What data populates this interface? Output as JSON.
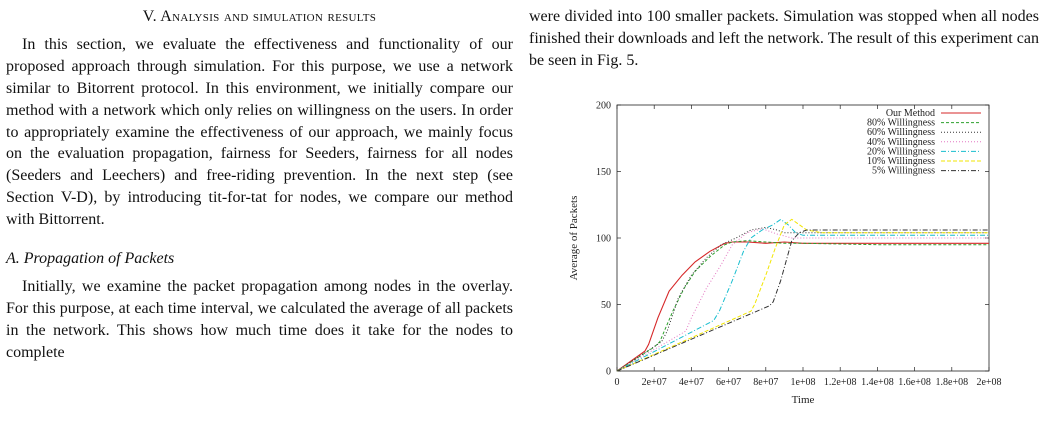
{
  "section": {
    "title": "V. Analysis and simulation results",
    "intro": "In this section, we evaluate the effectiveness and functionality of our proposed approach through simulation. For this purpose, we use a network similar to Bitorrent protocol. In this environment, we initially compare our method with a network which only relies on willingness on the users. In order to appropriately examine the effectiveness of our approach, we mainly focus on the evaluation propagation, fairness for Seeders, fairness for all nodes (Seeders and Leechers) and free-riding prevention. In the next step (see Section V-D), by introducing tit-for-tat for nodes, we compare our method with Bittorrent."
  },
  "subsection": {
    "title": "A. Propagation of Packets",
    "text": "Initially, we examine the packet propagation among nodes in the overlay. For this purpose, at each time interval, we calculated the average of all packets in the network. This shows how much time does it take for the nodes to complete"
  },
  "right_text": "were divided into 100 smaller packets. Simulation was stopped when all nodes finished their downloads and left the network. The result of this experiment can be seen in Fig. 5.",
  "chart_data": {
    "type": "line",
    "xlabel": "Time",
    "ylabel": "Average of Packets",
    "xlim": [
      0,
      200000000
    ],
    "ylim": [
      0,
      200
    ],
    "x_ticks": [
      "0",
      "2e+07",
      "4e+07",
      "6e+07",
      "8e+07",
      "1e+08",
      "1.2e+08",
      "1.4e+08",
      "1.6e+08",
      "1.8e+08",
      "2e+08"
    ],
    "x_tick_values": [
      0,
      20000000,
      40000000,
      60000000,
      80000000,
      100000000,
      120000000,
      140000000,
      160000000,
      180000000,
      200000000
    ],
    "y_ticks": [
      "0",
      "50",
      "100",
      "150",
      "200"
    ],
    "y_tick_values": [
      0,
      50,
      100,
      150,
      200
    ],
    "legend_position": "top-right",
    "series": [
      {
        "name": "Our Method",
        "color": "#d62728",
        "dash": "solid",
        "x": [
          0,
          15000000,
          17000000,
          22000000,
          28000000,
          35000000,
          42000000,
          50000000,
          58000000,
          62000000,
          70000000,
          80000000,
          90000000,
          100000000,
          120000000,
          160000000,
          200000000
        ],
        "y": [
          0,
          15,
          20,
          40,
          60,
          72,
          82,
          90,
          96,
          97,
          97,
          96,
          97,
          96,
          96,
          96,
          96
        ]
      },
      {
        "name": "80% Willingness",
        "color": "#2ca02c",
        "dash": "3,2",
        "x": [
          0,
          20000000,
          23000000,
          30000000,
          36000000,
          42000000,
          50000000,
          58000000,
          62000000,
          70000000,
          80000000,
          90000000,
          100000000,
          140000000,
          200000000
        ],
        "y": [
          0,
          18,
          22,
          45,
          62,
          75,
          86,
          95,
          97,
          98,
          97,
          96,
          96,
          95,
          95
        ]
      },
      {
        "name": "60% Willingness",
        "color": "#333333",
        "dash": "1,2",
        "x": [
          0,
          24000000,
          27000000,
          33000000,
          40000000,
          48000000,
          56000000,
          64000000,
          72000000,
          80000000,
          86000000,
          90000000,
          100000000,
          140000000,
          200000000
        ],
        "y": [
          0,
          22,
          30,
          55,
          72,
          85,
          95,
          100,
          106,
          108,
          106,
          104,
          104,
          104,
          104
        ]
      },
      {
        "name": "40% Willingness",
        "color": "#e377c2",
        "dash": "1,2",
        "x": [
          0,
          37000000,
          40000000,
          48000000,
          56000000,
          62000000,
          70000000,
          78000000,
          86000000,
          94000000,
          100000000,
          140000000,
          200000000
        ],
        "y": [
          0,
          30,
          40,
          62,
          80,
          95,
          104,
          107,
          103,
          100,
          100,
          100,
          100
        ]
      },
      {
        "name": "20% Willingness",
        "color": "#17becf",
        "dash": "5,2,1,2",
        "x": [
          0,
          52000000,
          55000000,
          62000000,
          68000000,
          72000000,
          78000000,
          84000000,
          88000000,
          92000000,
          96000000,
          100000000,
          140000000,
          200000000
        ],
        "y": [
          0,
          38,
          45,
          68,
          90,
          100,
          106,
          110,
          114,
          110,
          104,
          102,
          102,
          102
        ]
      },
      {
        "name": "10% Willingness",
        "color": "#f2e600",
        "dash": "4,2",
        "x": [
          0,
          72000000,
          74000000,
          80000000,
          85000000,
          90000000,
          94000000,
          98000000,
          102000000,
          110000000,
          140000000,
          200000000
        ],
        "y": [
          0,
          45,
          50,
          72,
          92,
          110,
          114,
          110,
          106,
          104,
          104,
          104
        ]
      },
      {
        "name": "5% Willingness",
        "color": "#333333",
        "dash": "5,2,1,2",
        "x": [
          0,
          82000000,
          84000000,
          88000000,
          94000000,
          98000000,
          102000000,
          110000000,
          140000000,
          200000000
        ],
        "y": [
          0,
          49,
          52,
          68,
          98,
          104,
          106,
          106,
          106,
          106
        ]
      }
    ]
  }
}
